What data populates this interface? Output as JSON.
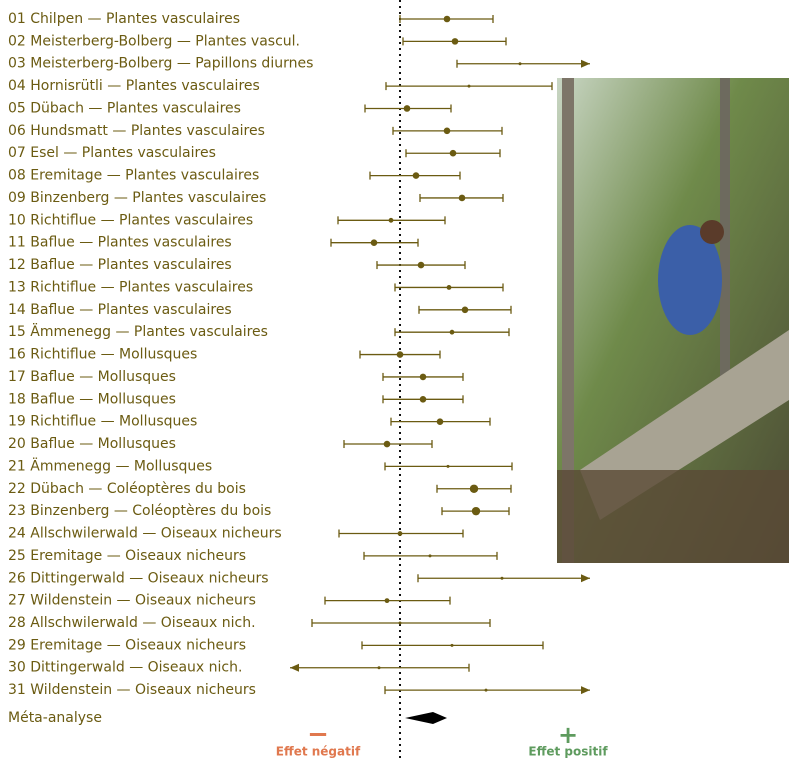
{
  "chart_data": {
    "type": "forest",
    "categories": [
      "01 Chilpen — Plantes vasculaires",
      "02 Meisterberg-Bolberg — Plantes vascul.",
      "03 Meisterberg-Bolberg — Papillons diurnes",
      "04 Hornisrütli — Plantes vasculaires",
      "05 Dübach — Plantes vasculaires",
      "06 Hundsmatt — Plantes vasculaires",
      "07 Esel — Plantes vasculaires",
      "08 Eremitage — Plantes vasculaires",
      "09 Binzenberg — Plantes vasculaires",
      "10 Richtiflue — Plantes vasculaires",
      "11 Baflue — Plantes vasculaires",
      "12 Baflue — Plantes vasculaires",
      "13 Richtiflue — Plantes vasculaires",
      "14 Baflue — Plantes vasculaires",
      "15 Ämmenegg — Plantes vasculaires",
      "16 Richtiflue — Mollusques",
      "17 Baflue — Mollusques",
      "18 Baflue — Mollusques",
      "19 Richtiflue — Mollusques",
      "20 Baflue — Mollusques",
      "21 Ämmenegg — Mollusques",
      "22 Dübach — Coléoptères du bois",
      "23 Binzenberg — Coléoptères du bois",
      "24 Allschwilerwald — Oiseaux nicheurs",
      "25 Eremitage — Oiseaux nicheurs",
      "26 Dittingerwald — Oiseaux nicheurs",
      "27 Wildenstein — Oiseaux nicheurs",
      "28 Allschwilerwald — Oiseaux nich.",
      "29 Eremitage — Oiseaux nicheurs",
      "30 Dittingerwald — Oiseaux nich.",
      "31 Wildenstein — Oiseaux nicheurs"
    ],
    "values": [
      0.47,
      0.55,
      1.2,
      0.69,
      0.07,
      0.47,
      0.53,
      0.16,
      0.62,
      -0.09,
      -0.26,
      0.21,
      0.49,
      0.65,
      0.52,
      0.0,
      0.23,
      0.23,
      0.4,
      -0.13,
      0.48,
      0.74,
      0.76,
      0.0,
      0.3,
      1.02,
      -0.13,
      0.0,
      0.52,
      -0.21,
      0.86
    ],
    "ci_low": [
      0.0,
      0.03,
      0.57,
      -0.14,
      -0.35,
      -0.07,
      0.06,
      -0.3,
      0.2,
      -0.62,
      -0.69,
      -0.23,
      -0.05,
      0.19,
      -0.05,
      -0.4,
      -0.17,
      -0.17,
      -0.09,
      -0.56,
      -0.15,
      0.37,
      0.42,
      -0.61,
      -0.36,
      0.18,
      -0.75,
      -0.88,
      -0.38,
      -1.2,
      -0.15
    ],
    "ci_high": [
      0.93,
      1.06,
      2.0,
      1.52,
      0.51,
      1.02,
      1.0,
      0.6,
      1.03,
      0.45,
      0.18,
      0.65,
      1.03,
      1.11,
      1.09,
      0.4,
      0.63,
      0.63,
      0.9,
      0.32,
      1.12,
      1.11,
      1.09,
      0.63,
      0.97,
      2.0,
      0.5,
      0.9,
      1.43,
      0.69,
      2.0
    ],
    "weights": [
      3,
      3,
      1,
      1,
      3,
      3,
      3,
      3,
      3,
      2,
      3,
      3,
      2,
      3,
      2,
      3,
      3,
      3,
      3,
      3,
      1,
      4,
      4,
      2,
      1,
      1,
      2,
      1,
      1,
      1,
      1
    ],
    "color": "#6b5b12",
    "summary": {
      "label": "Méta-analyse",
      "value": 0.33,
      "ci_low": 0.05,
      "ci_high": 0.47,
      "color": "#000000"
    },
    "reference": 0,
    "xlim": [
      -1.1,
      1.9
    ],
    "negative": {
      "symbol": "−",
      "label": "Effet négatif",
      "color": "#e0784e"
    },
    "positive": {
      "symbol": "+",
      "label": "Effet positif",
      "color": "#5e9b5e"
    }
  }
}
